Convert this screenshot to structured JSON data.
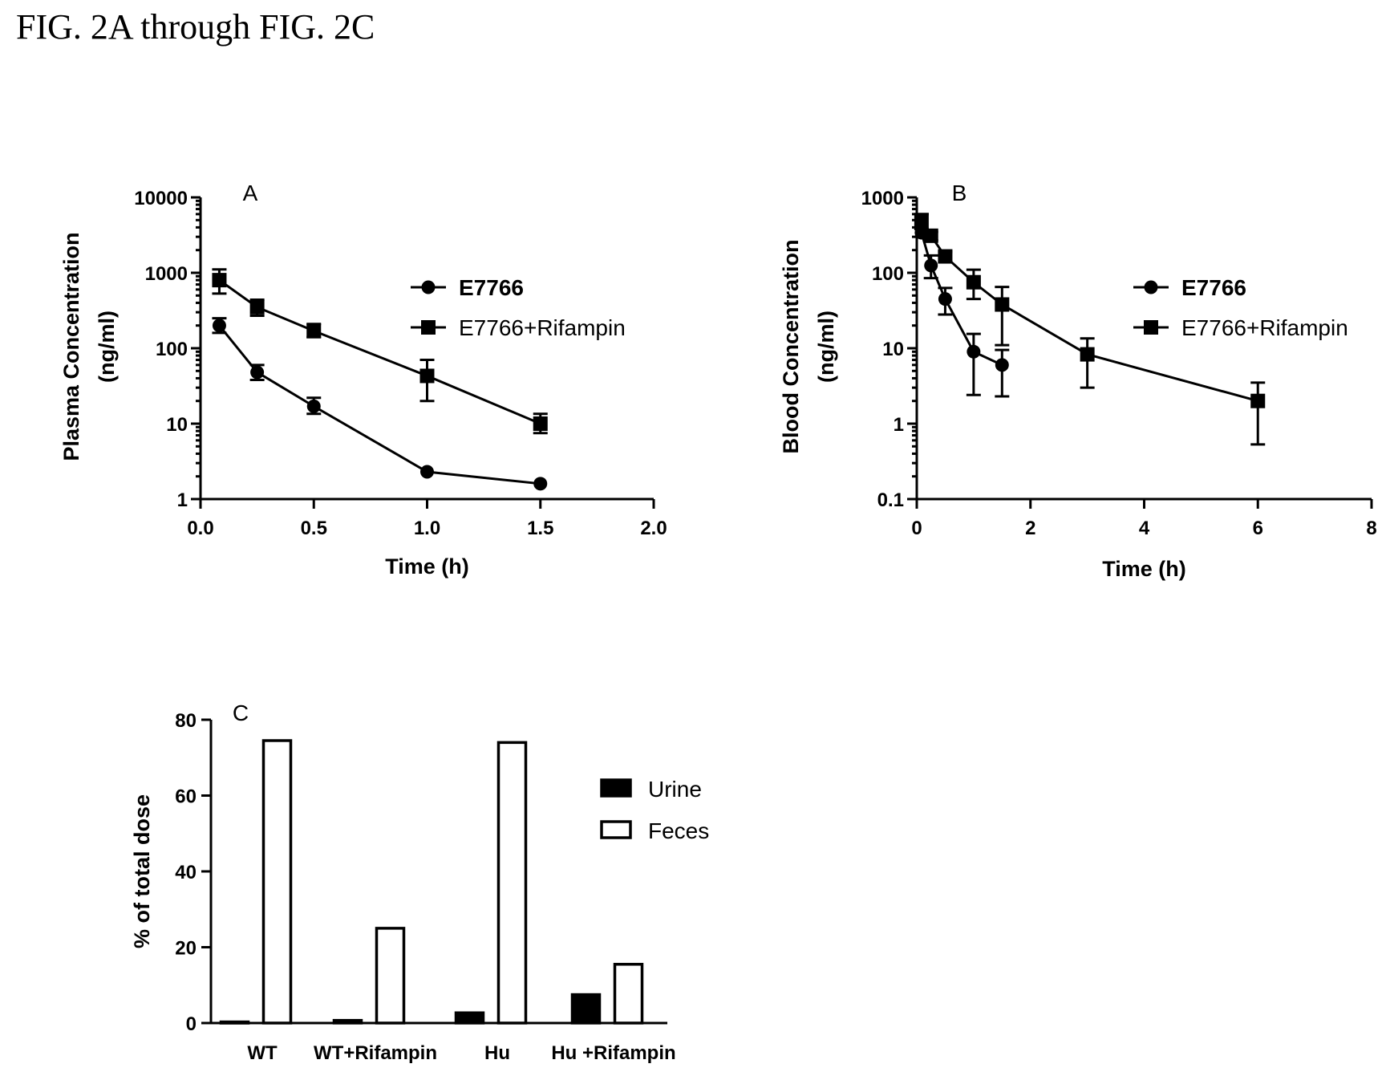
{
  "figure_title": "FIG. 2A through FIG. 2C",
  "chart_data": [
    {
      "panel": "A",
      "type": "line",
      "xlabel": "Time (h)",
      "ylabel_lines": [
        "Plasma Concentration",
        "(ng/ml)"
      ],
      "yscale": "log",
      "xlim": [
        0,
        2
      ],
      "ylim": [
        1,
        10000
      ],
      "xticks": [
        "0.0",
        "0.5",
        "1.0",
        "1.5",
        "2.0"
      ],
      "xtick_values": [
        0,
        0.5,
        1,
        1.5,
        2
      ],
      "yticks": [
        "1",
        "10",
        "100",
        "1000",
        "10000"
      ],
      "ytick_values": [
        1,
        10,
        100,
        1000,
        10000
      ],
      "legend_position": "right",
      "series": [
        {
          "name": "E7766",
          "marker": "circle",
          "x": [
            0.083,
            0.25,
            0.5,
            1.0,
            1.5
          ],
          "y": [
            200,
            48,
            17,
            2.3,
            1.6
          ],
          "err_lo": [
            160,
            38,
            13.5,
            2.3,
            1.6
          ],
          "err_hi": [
            250,
            60,
            22,
            2.3,
            1.6
          ]
        },
        {
          "name": "E7766+Rifampin",
          "marker": "square",
          "x": [
            0.083,
            0.25,
            0.5,
            1.0,
            1.5
          ],
          "y": [
            800,
            350,
            170,
            43,
            10
          ],
          "err_lo": [
            530,
            270,
            140,
            20,
            7.5
          ],
          "err_hi": [
            1110,
            440,
            210,
            70,
            13.5
          ]
        }
      ]
    },
    {
      "panel": "B",
      "type": "line",
      "xlabel": "Time (h)",
      "ylabel_lines": [
        "Blood Concentration",
        "(ng/ml)"
      ],
      "yscale": "log",
      "xlim": [
        0,
        8
      ],
      "ylim": [
        0.1,
        1000
      ],
      "xticks": [
        "0",
        "2",
        "4",
        "6",
        "8"
      ],
      "xtick_values": [
        0,
        2,
        4,
        6,
        8
      ],
      "yticks": [
        "0.1",
        "1",
        "10",
        "100",
        "1000"
      ],
      "ytick_values": [
        0.1,
        1,
        10,
        100,
        1000
      ],
      "legend_position": "right",
      "series": [
        {
          "name": "E7766",
          "marker": "circle",
          "x": [
            0.083,
            0.25,
            0.5,
            1.0,
            1.5
          ],
          "y": [
            340,
            125,
            45,
            9,
            6
          ],
          "err_lo": [
            300,
            85,
            28,
            2.4,
            2.3
          ],
          "err_hi": [
            380,
            170,
            63,
            15.5,
            9.5
          ]
        },
        {
          "name": "E7766+Rifampin",
          "marker": "square",
          "x": [
            0.083,
            0.25,
            0.5,
            1.0,
            1.5,
            3.0,
            6.0
          ],
          "y": [
            500,
            310,
            165,
            75,
            38,
            8.3,
            2
          ],
          "err_lo": [
            390,
            270,
            140,
            45,
            11,
            3,
            0.53
          ],
          "err_hi": [
            600,
            350,
            190,
            110,
            65,
            13.5,
            3.5
          ]
        }
      ]
    },
    {
      "panel": "C",
      "type": "bar",
      "ylabel": "% of total dose",
      "ylim": [
        0,
        80
      ],
      "yticks": [
        "0",
        "20",
        "40",
        "60",
        "80"
      ],
      "ytick_values": [
        0,
        20,
        40,
        60,
        80
      ],
      "categories": [
        "WT",
        "WT+Rifampin",
        "Hu",
        "Hu +Rifampin"
      ],
      "legend_position": "right",
      "series": [
        {
          "name": "Urine",
          "fill": "#000000",
          "values": [
            0.3,
            0.7,
            2.7,
            7.5
          ]
        },
        {
          "name": "Feces",
          "fill": "#ffffff",
          "values": [
            74.5,
            25,
            74,
            15.5
          ]
        }
      ]
    }
  ]
}
